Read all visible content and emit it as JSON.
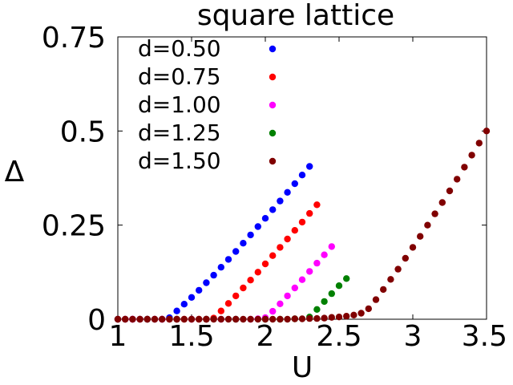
{
  "chart_data": {
    "type": "scatter",
    "title": "square lattice",
    "xlabel": "U",
    "ylabel": "Δ",
    "xlim": [
      1,
      3.5
    ],
    "ylim": [
      0,
      0.75
    ],
    "x_ticks": [
      1,
      1.5,
      2,
      2.5,
      3,
      3.5
    ],
    "x_tick_labels": [
      "1",
      "1.5",
      "2",
      "2.5",
      "3",
      "3.5"
    ],
    "y_ticks": [
      0,
      0.25,
      0.5,
      0.75
    ],
    "y_tick_labels": [
      "0",
      "0.25",
      "0.5",
      "0.75"
    ],
    "grid": false,
    "legend_position": "top-left",
    "series": [
      {
        "name": "d=0.50",
        "color": "#0000ff",
        "points": [
          [
            1.0,
            0.0
          ],
          [
            1.05,
            0.0
          ],
          [
            1.1,
            0.0
          ],
          [
            1.15,
            0.0
          ],
          [
            1.2,
            0.0
          ],
          [
            1.25,
            0.0
          ],
          [
            1.3,
            0.0
          ],
          [
            1.35,
            0.004
          ],
          [
            1.4,
            0.022
          ],
          [
            1.45,
            0.04
          ],
          [
            1.5,
            0.058
          ],
          [
            1.55,
            0.077
          ],
          [
            1.6,
            0.097
          ],
          [
            1.65,
            0.117
          ],
          [
            1.7,
            0.138
          ],
          [
            1.75,
            0.159
          ],
          [
            1.8,
            0.18
          ],
          [
            1.85,
            0.202
          ],
          [
            1.9,
            0.224
          ],
          [
            1.95,
            0.246
          ],
          [
            2.0,
            0.268
          ],
          [
            2.05,
            0.291
          ],
          [
            2.1,
            0.314
          ],
          [
            2.15,
            0.337
          ],
          [
            2.2,
            0.36
          ],
          [
            2.25,
            0.383
          ],
          [
            2.3,
            0.406
          ]
        ]
      },
      {
        "name": "d=0.75",
        "color": "#ff0000",
        "points": [
          [
            1.0,
            0.0
          ],
          [
            1.05,
            0.0
          ],
          [
            1.1,
            0.0
          ],
          [
            1.15,
            0.0
          ],
          [
            1.2,
            0.0
          ],
          [
            1.25,
            0.0
          ],
          [
            1.3,
            0.0
          ],
          [
            1.35,
            0.0
          ],
          [
            1.4,
            0.0
          ],
          [
            1.45,
            0.0
          ],
          [
            1.5,
            0.0
          ],
          [
            1.55,
            0.0
          ],
          [
            1.6,
            0.0
          ],
          [
            1.65,
            0.003
          ],
          [
            1.7,
            0.022
          ],
          [
            1.75,
            0.042
          ],
          [
            1.8,
            0.062
          ],
          [
            1.85,
            0.083
          ],
          [
            1.9,
            0.104
          ],
          [
            1.95,
            0.125
          ],
          [
            2.0,
            0.147
          ],
          [
            2.05,
            0.169
          ],
          [
            2.1,
            0.191
          ],
          [
            2.15,
            0.213
          ],
          [
            2.2,
            0.236
          ],
          [
            2.25,
            0.258
          ],
          [
            2.3,
            0.281
          ],
          [
            2.35,
            0.304
          ]
        ]
      },
      {
        "name": "d=1.00",
        "color": "#ff00ff",
        "points": [
          [
            1.0,
            0.0
          ],
          [
            1.1,
            0.0
          ],
          [
            1.2,
            0.0
          ],
          [
            1.3,
            0.0
          ],
          [
            1.4,
            0.0
          ],
          [
            1.5,
            0.0
          ],
          [
            1.6,
            0.0
          ],
          [
            1.7,
            0.0
          ],
          [
            1.8,
            0.0
          ],
          [
            1.9,
            0.0
          ],
          [
            1.95,
            0.001
          ],
          [
            2.0,
            0.004
          ],
          [
            2.05,
            0.021
          ],
          [
            2.1,
            0.041
          ],
          [
            2.15,
            0.062
          ],
          [
            2.2,
            0.083
          ],
          [
            2.25,
            0.105
          ],
          [
            2.3,
            0.127
          ],
          [
            2.35,
            0.149
          ],
          [
            2.4,
            0.171
          ],
          [
            2.45,
            0.193
          ]
        ]
      },
      {
        "name": "d=1.25",
        "color": "#008000",
        "points": [
          [
            1.0,
            0.0
          ],
          [
            1.2,
            0.0
          ],
          [
            1.4,
            0.0
          ],
          [
            1.6,
            0.0
          ],
          [
            1.8,
            0.0
          ],
          [
            2.0,
            0.0
          ],
          [
            2.1,
            0.0
          ],
          [
            2.2,
            0.001
          ],
          [
            2.3,
            0.006
          ],
          [
            2.35,
            0.026
          ],
          [
            2.4,
            0.047
          ],
          [
            2.45,
            0.068
          ],
          [
            2.5,
            0.089
          ],
          [
            2.55,
            0.108
          ]
        ]
      },
      {
        "name": "d=1.50",
        "color": "#800000",
        "points": [
          [
            1.0,
            0.0
          ],
          [
            1.05,
            0.0
          ],
          [
            1.1,
            0.0
          ],
          [
            1.15,
            0.0
          ],
          [
            1.2,
            0.0
          ],
          [
            1.25,
            0.0
          ],
          [
            1.3,
            0.0
          ],
          [
            1.35,
            0.0
          ],
          [
            1.4,
            0.0
          ],
          [
            1.45,
            0.0
          ],
          [
            1.5,
            0.0
          ],
          [
            1.55,
            0.0
          ],
          [
            1.6,
            0.0
          ],
          [
            1.65,
            0.0
          ],
          [
            1.7,
            0.0
          ],
          [
            1.75,
            0.0
          ],
          [
            1.8,
            0.0
          ],
          [
            1.85,
            0.0
          ],
          [
            1.9,
            0.0
          ],
          [
            1.95,
            0.0
          ],
          [
            2.0,
            0.0
          ],
          [
            2.05,
            0.0
          ],
          [
            2.1,
            0.0
          ],
          [
            2.15,
            0.0
          ],
          [
            2.2,
            0.001
          ],
          [
            2.25,
            0.001
          ],
          [
            2.3,
            0.002
          ],
          [
            2.35,
            0.002
          ],
          [
            2.4,
            0.003
          ],
          [
            2.45,
            0.005
          ],
          [
            2.5,
            0.006
          ],
          [
            2.55,
            0.008
          ],
          [
            2.6,
            0.011
          ],
          [
            2.65,
            0.016
          ],
          [
            2.7,
            0.028
          ],
          [
            2.75,
            0.052
          ],
          [
            2.8,
            0.079
          ],
          [
            2.85,
            0.106
          ],
          [
            2.9,
            0.133
          ],
          [
            2.95,
            0.162
          ],
          [
            3.0,
            0.191
          ],
          [
            3.05,
            0.22
          ],
          [
            3.1,
            0.25
          ],
          [
            3.15,
            0.28
          ],
          [
            3.2,
            0.31
          ],
          [
            3.25,
            0.341
          ],
          [
            3.3,
            0.372
          ],
          [
            3.35,
            0.404
          ],
          [
            3.4,
            0.436
          ],
          [
            3.45,
            0.468
          ],
          [
            3.5,
            0.5
          ]
        ]
      }
    ]
  }
}
